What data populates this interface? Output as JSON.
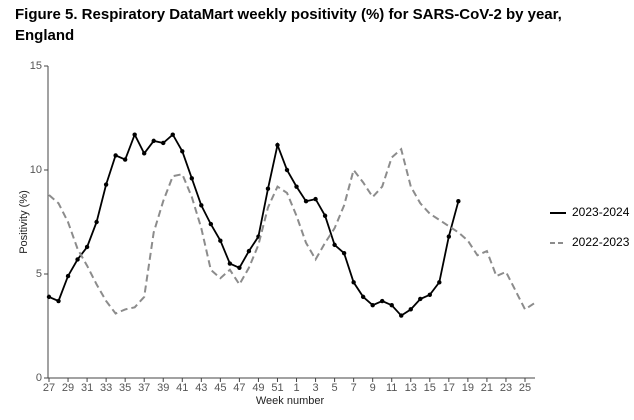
{
  "chart_data": {
    "type": "line",
    "title": [
      "Figure 5. Respiratory DataMart weekly positivity (%) for SARS-CoV-2 by year,",
      "England"
    ],
    "x_label": "Week number",
    "y_label": "Positivity (%)",
    "categories": [
      "27",
      null,
      "29",
      null,
      "31",
      null,
      "33",
      null,
      "35",
      null,
      "37",
      null,
      "39",
      null,
      "41",
      null,
      "43",
      null,
      "45",
      null,
      "47",
      null,
      "49",
      null,
      "51",
      null,
      "1",
      null,
      "3",
      null,
      "5",
      null,
      "7",
      null,
      "9",
      null,
      "11",
      null,
      "13",
      null,
      "15",
      null,
      "17",
      null,
      "19",
      null,
      "21",
      null,
      "23",
      null,
      "25",
      null
    ],
    "ylim": [
      0,
      15
    ],
    "yticks": [
      0,
      5,
      10,
      15
    ],
    "grid": false,
    "legend": "right",
    "series": [
      {
        "name": "2023-2024",
        "color": "#000000",
        "dashed": false,
        "markers": true,
        "values": [
          3.9,
          3.7,
          4.9,
          5.7,
          6.3,
          7.5,
          9.3,
          10.7,
          10.5,
          11.7,
          10.8,
          11.4,
          11.3,
          11.7,
          10.9,
          9.6,
          8.3,
          7.4,
          6.6,
          5.5,
          5.3,
          6.1,
          6.8,
          9.1,
          11.2,
          10.0,
          9.2,
          8.5,
          8.6,
          7.8,
          6.4,
          6.0,
          4.6,
          3.9,
          3.5,
          3.7,
          3.5,
          3.0,
          3.3,
          3.8,
          4.0,
          4.6,
          6.8,
          8.5,
          null,
          null,
          null,
          null,
          null,
          null,
          null,
          null
        ]
      },
      {
        "name": "2022-2023",
        "color": "#8c8c8c",
        "dashed": true,
        "markers": false,
        "values": [
          8.8,
          8.4,
          7.5,
          6.2,
          5.4,
          4.5,
          3.7,
          3.1,
          3.3,
          3.4,
          3.9,
          7.0,
          8.5,
          9.7,
          9.8,
          8.7,
          7.2,
          5.2,
          4.8,
          5.2,
          4.5,
          5.3,
          6.4,
          8.2,
          9.2,
          8.9,
          7.8,
          6.5,
          5.7,
          6.5,
          7.2,
          8.3,
          10.0,
          9.4,
          8.7,
          9.2,
          10.6,
          11.0,
          9.2,
          8.4,
          7.9,
          7.6,
          7.3,
          7.0,
          6.6,
          5.9,
          6.1,
          4.9,
          5.1,
          4.2,
          3.3,
          3.6
        ]
      }
    ]
  }
}
